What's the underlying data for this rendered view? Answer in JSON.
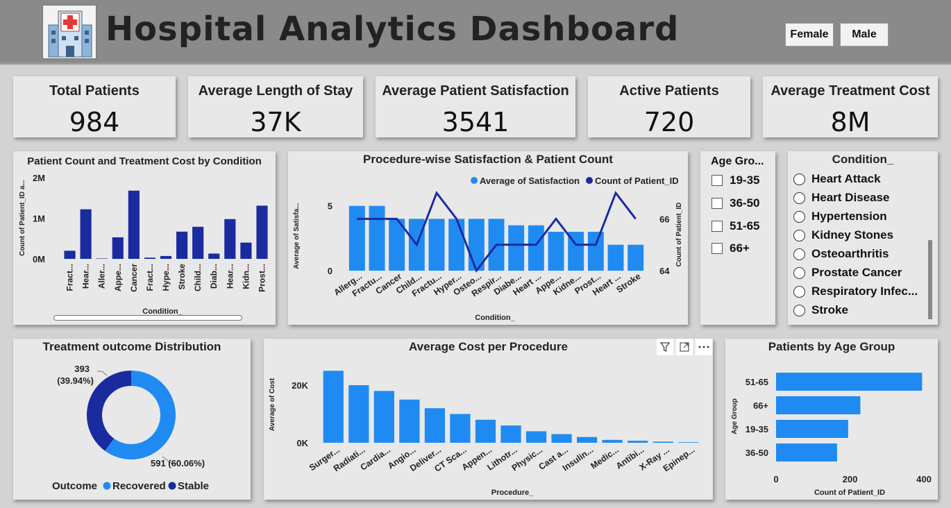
{
  "header": {
    "title": "Hospital Analytics Dashboard",
    "gender_buttons": [
      "Female",
      "Male"
    ]
  },
  "kpis": [
    {
      "label": "Total Patients",
      "value": "984"
    },
    {
      "label": "Average Length of Stay",
      "value": "37K"
    },
    {
      "label": "Average Patient Satisfaction",
      "value": "3541"
    },
    {
      "label": "Active Patients",
      "value": "720"
    },
    {
      "label": "Average Treatment Cost",
      "value": "8M"
    }
  ],
  "age_slicer": {
    "title": "Age Gro...",
    "options": [
      "19-35",
      "36-50",
      "51-65",
      "66+"
    ]
  },
  "condition_slicer": {
    "title": "Condition_",
    "options": [
      "Heart Attack",
      "Heart Disease",
      "Hypertension",
      "Kidney Stones",
      "Osteoarthritis",
      "Prostate Cancer",
      "Respiratory Infec...",
      "Stroke"
    ]
  },
  "visual_header_icons": [
    "filter-icon",
    "focus-mode-icon",
    "more-options-icon"
  ],
  "chart_data": [
    {
      "id": "condition_bar",
      "type": "bar",
      "title": "Patient Count and Treatment Cost by Condition",
      "xlabel": "Condition_",
      "ylabel": "Count of Patient_ID a...",
      "yticks": [
        "2M",
        "1M",
        "0M"
      ],
      "ylim": [
        0,
        2000000
      ],
      "categories": [
        "Fract...",
        "Hear...",
        "Aller...",
        "Appe...",
        "Cancer",
        "Fract...",
        "Hype...",
        "Stroke",
        "Child...",
        "Diab...",
        "Hear...",
        "Kidn...",
        "Prost..."
      ],
      "values": [
        200000,
        1220000,
        10000,
        530000,
        1680000,
        30000,
        70000,
        670000,
        790000,
        130000,
        980000,
        400000,
        1310000
      ],
      "color": "#1a2ba0"
    },
    {
      "id": "procedure_combo",
      "type": "bar",
      "title": "Procedure-wise Satisfaction & Patient Count",
      "xlabel": "Condition_",
      "ylabel": "Average of Satisfa...",
      "y2label": "Count of Patient_ID",
      "yticks": [
        "5",
        "0"
      ],
      "y2ticks": [
        "66",
        "64"
      ],
      "ylim": [
        0,
        6
      ],
      "y2lim": [
        64,
        67
      ],
      "legend": [
        "Average of Satisfaction",
        "Count of Patient_ID"
      ],
      "categories": [
        "Allerg...",
        "Fractu...",
        "Cancer",
        "Child...",
        "Fractu...",
        "Hyper...",
        "Osteo...",
        "Respir...",
        "Diabe...",
        "Heart ...",
        "Appe...",
        "Kidne...",
        "Prost...",
        "Heart ...",
        "Stroke"
      ],
      "series": [
        {
          "name": "Average of Satisfaction",
          "type": "bar",
          "values": [
            5,
            5,
            4,
            4,
            4,
            4,
            4,
            4,
            3.5,
            3.5,
            3,
            3,
            3,
            2,
            2
          ],
          "color": "#1f8bf2"
        },
        {
          "name": "Count of Patient_ID",
          "type": "line",
          "values": [
            66,
            66,
            66,
            65,
            67,
            66,
            64,
            65,
            65,
            65,
            66,
            65,
            65,
            67,
            66
          ],
          "color": "#1a2ba0"
        }
      ]
    },
    {
      "id": "outcome_donut",
      "type": "pie",
      "title": "Treatment outcome Distribution",
      "legend_title": "Outcome",
      "slices": [
        {
          "name": "Recovered",
          "value": 591,
          "label": "591 (60.06%)",
          "color": "#1f8bf2"
        },
        {
          "name": "Stable",
          "value": 393,
          "label_line1": "393",
          "label_line2": "(39.94%)",
          "color": "#1a2ba0"
        }
      ]
    },
    {
      "id": "cost_bar",
      "type": "bar",
      "title": "Average Cost per Procedure",
      "xlabel": "Procedure_",
      "ylabel": "Average of Cost",
      "yticks": [
        "20K",
        "0K"
      ],
      "ylim": [
        0,
        27000
      ],
      "categories": [
        "Surger...",
        "Radiati...",
        "Cardia...",
        "Angio...",
        "Deliver...",
        "CT Sca...",
        "Appen...",
        "Lithotr...",
        "Physic...",
        "Cast a...",
        "Insulin...",
        "Medic...",
        "Antibi...",
        "X-Ray ...",
        "Epinep..."
      ],
      "values": [
        25000,
        20000,
        18000,
        15000,
        12000,
        10000,
        8000,
        6000,
        4000,
        3000,
        2000,
        1000,
        700,
        400,
        200
      ],
      "color": "#1f8bf2"
    },
    {
      "id": "age_bar",
      "type": "bar",
      "orientation": "horizontal",
      "title": "Patients by Age Group",
      "xlabel": "Count of Patient_ID",
      "ylabel": "Age Group",
      "xticks": [
        "0",
        "200",
        "400"
      ],
      "xlim": [
        0,
        400
      ],
      "categories": [
        "51-65",
        "66+",
        "19-35",
        "36-50"
      ],
      "values": [
        395,
        228,
        195,
        165
      ],
      "color": "#1f8bf2"
    }
  ]
}
